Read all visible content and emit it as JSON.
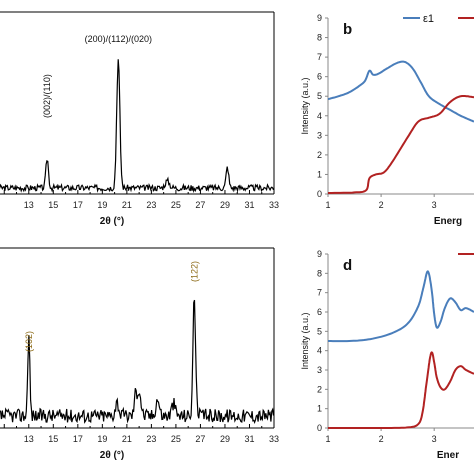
{
  "chart_data": [
    {
      "id": "a",
      "type": "line",
      "panel_label": "",
      "xlabel": "2θ (°)",
      "ylabel": "",
      "xlim": [
        10,
        33
      ],
      "ylim": [
        0,
        1.0
      ],
      "x_ticks": [
        "13",
        "15",
        "17",
        "19",
        "21",
        "23",
        "25",
        "27",
        "29",
        "31",
        "33"
      ],
      "x_tick_values": [
        13,
        15,
        17,
        19,
        21,
        23,
        25,
        27,
        29,
        31,
        33
      ],
      "series": [
        {
          "color": "#000000",
          "peaks": [
            [
              14.5,
              0.17,
              0.15
            ],
            [
              20.3,
              0.74,
              0.18
            ],
            [
              24.3,
              0.04,
              0.25
            ],
            [
              29.2,
              0.12,
              0.15
            ]
          ],
          "baseline": 0.03
        }
      ],
      "annotations": [
        {
          "text": "(002)/(110)",
          "x": 14.5,
          "rotated": true,
          "color": "#111111"
        },
        {
          "text": "(200)/(112)/(020)",
          "x": 20.3,
          "rotated": false,
          "color": "#111111"
        }
      ]
    },
    {
      "id": "b",
      "type": "line",
      "panel_label": "b",
      "xlabel": "Energ",
      "ylabel": "Intensity (a.u.)",
      "xlim": [
        1,
        3.75
      ],
      "ylim": [
        0,
        9
      ],
      "x_ticks": [
        "1",
        "2",
        "3"
      ],
      "x_tick_values": [
        1,
        2,
        3
      ],
      "y_ticks": [
        "0",
        "1",
        "2",
        "3",
        "4",
        "5",
        "6",
        "7",
        "8",
        "9"
      ],
      "y_tick_values": [
        0,
        1,
        2,
        3,
        4,
        5,
        6,
        7,
        8,
        9
      ],
      "series": [
        {
          "name": "ε1",
          "color": "#4a7ebb",
          "x": [
            1.0,
            1.2,
            1.4,
            1.6,
            1.7,
            1.78,
            1.85,
            1.95,
            2.1,
            2.3,
            2.45,
            2.6,
            2.75,
            2.9,
            3.1,
            3.3,
            3.5,
            3.75
          ],
          "y": [
            4.85,
            5.0,
            5.2,
            5.55,
            5.8,
            6.3,
            6.1,
            6.15,
            6.4,
            6.7,
            6.75,
            6.4,
            5.7,
            5.0,
            4.6,
            4.3,
            4.0,
            3.7
          ]
        },
        {
          "name": "",
          "color": "#b22222",
          "x": [
            1.0,
            1.5,
            1.72,
            1.78,
            1.9,
            2.05,
            2.2,
            2.5,
            2.7,
            2.9,
            3.1,
            3.3,
            3.5,
            3.75
          ],
          "y": [
            0.05,
            0.08,
            0.2,
            0.8,
            1.0,
            1.1,
            1.6,
            2.9,
            3.7,
            3.9,
            4.1,
            4.7,
            5.0,
            4.95
          ]
        }
      ],
      "legend": {
        "position": "top-right",
        "visible_entries": [
          "ε1"
        ]
      }
    },
    {
      "id": "c",
      "type": "line",
      "panel_label": "",
      "xlabel": "2θ (°)",
      "ylabel": "",
      "xlim": [
        10,
        33
      ],
      "ylim": [
        0,
        1.0
      ],
      "x_ticks": [
        "13",
        "15",
        "17",
        "19",
        "21",
        "23",
        "25",
        "27",
        "29",
        "31",
        "33"
      ],
      "x_tick_values": [
        13,
        15,
        17,
        19,
        21,
        23,
        25,
        27,
        29,
        31,
        33
      ],
      "series": [
        {
          "color": "#000000",
          "peaks": [
            [
              13.0,
              0.47,
              0.12
            ],
            [
              26.5,
              0.7,
              0.15
            ],
            [
              22.0,
              0.15,
              0.2
            ],
            [
              21.7,
              0.12,
              0.15
            ],
            [
              23.5,
              0.1,
              0.2
            ],
            [
              20.2,
              0.08,
              0.2
            ],
            [
              24.8,
              0.07,
              0.2
            ]
          ],
          "baseline": 0.06
        }
      ],
      "annotations": [
        {
          "text": "(102)",
          "x": 13.0,
          "rotated": true,
          "color": "#8b6914"
        },
        {
          "text": "(122)",
          "x": 26.5,
          "rotated": true,
          "color": "#8b6914"
        }
      ]
    },
    {
      "id": "d",
      "type": "line",
      "panel_label": "d",
      "xlabel": "Ener",
      "ylabel": "Intensity (a.u.)",
      "xlim": [
        1,
        3.75
      ],
      "ylim": [
        0,
        9
      ],
      "x_ticks": [
        "1",
        "2",
        "3"
      ],
      "x_tick_values": [
        1,
        2,
        3
      ],
      "y_ticks": [
        "0",
        "1",
        "2",
        "3",
        "4",
        "5",
        "6",
        "7",
        "8",
        "9"
      ],
      "y_tick_values": [
        0,
        1,
        2,
        3,
        4,
        5,
        6,
        7,
        8,
        9
      ],
      "series": [
        {
          "name": "",
          "color": "#4a7ebb",
          "x": [
            1.0,
            1.4,
            1.8,
            2.2,
            2.5,
            2.7,
            2.8,
            2.88,
            2.95,
            3.0,
            3.05,
            3.12,
            3.2,
            3.3,
            3.4,
            3.5,
            3.6,
            3.75
          ],
          "y": [
            4.5,
            4.5,
            4.6,
            4.9,
            5.4,
            6.3,
            7.3,
            8.1,
            7.2,
            5.9,
            5.2,
            5.5,
            6.2,
            6.7,
            6.5,
            6.1,
            6.2,
            6.0
          ]
        },
        {
          "name": "",
          "color": "#b22222",
          "x": [
            1.0,
            2.0,
            2.5,
            2.7,
            2.78,
            2.85,
            2.92,
            2.96,
            3.0,
            3.05,
            3.12,
            3.2,
            3.3,
            3.4,
            3.5,
            3.6,
            3.75
          ],
          "y": [
            0.0,
            0.0,
            0.03,
            0.2,
            0.8,
            2.2,
            3.6,
            3.9,
            3.4,
            2.6,
            2.1,
            2.0,
            2.4,
            3.0,
            3.2,
            3.0,
            2.8
          ]
        }
      ],
      "legend": {
        "position": "top-right",
        "visible_entries": []
      }
    }
  ]
}
